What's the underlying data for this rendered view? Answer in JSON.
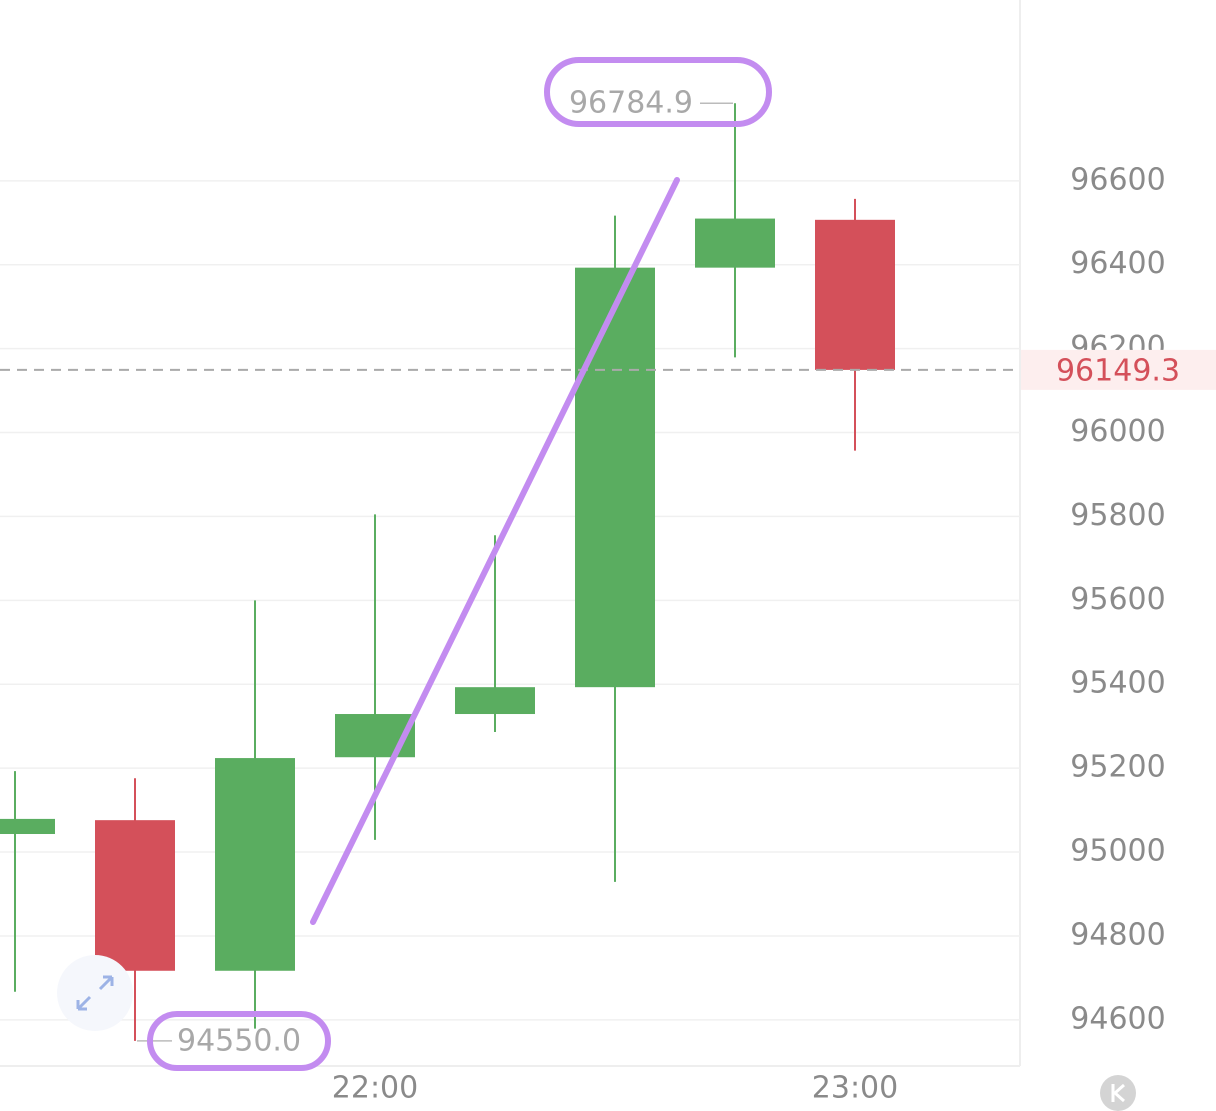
{
  "chart_data": {
    "type": "candlestick",
    "categories": [
      null,
      null,
      null,
      "22:00",
      null,
      null,
      null,
      "23:00"
    ],
    "open": [
      95043,
      95076,
      94717,
      95226,
      95329,
      95393,
      96393,
      96507
    ],
    "high": [
      95193,
      95176,
      95600,
      95805,
      95755,
      96517,
      96784.9,
      96557
    ],
    "low": [
      94667,
      94550,
      94579,
      95029,
      95286,
      94929,
      96179,
      95957
    ],
    "close": [
      95079,
      94717,
      95224,
      95329,
      95393,
      96393,
      96510,
      96149.3
    ],
    "up_color": "#5aad60",
    "down_color": "#d4505a",
    "ylim": [
      94490,
      97031
    ],
    "yticks": [
      94600,
      94800,
      95000,
      95200,
      95400,
      95600,
      95800,
      96000,
      96200,
      96400,
      96600
    ],
    "grid": true,
    "last_price": 96149.3,
    "max_marker": 96784.9,
    "min_marker": {
      "value": 94550,
      "label": "94550.0"
    }
  }
}
